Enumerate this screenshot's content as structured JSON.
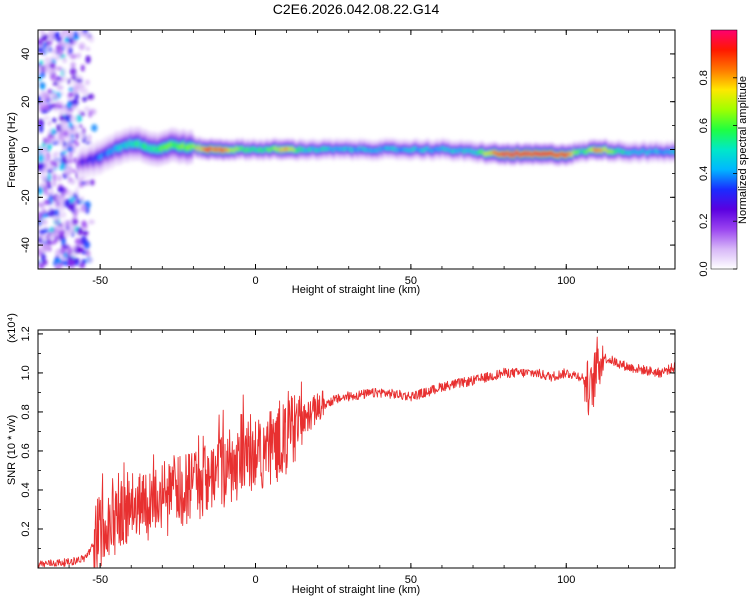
{
  "chart_data": [
    {
      "type": "heatmap",
      "title": "C2E6.2026.042.08.22.G14",
      "xlabel": "Height of straight line (km)",
      "ylabel": "Frequency (Hz)",
      "xlim": [
        -70,
        135
      ],
      "ylim": [
        -50,
        50
      ],
      "xticks": [
        -50,
        0,
        50,
        100
      ],
      "yticks": [
        -40,
        -20,
        0,
        20,
        40
      ],
      "colorbar": {
        "label": "Normalized spectral amplitude",
        "range": [
          0,
          1
        ],
        "ticks": [
          0.0,
          0.2,
          0.4,
          0.6,
          0.8
        ],
        "colors": [
          "#ffffff",
          "#d8b8f8",
          "#9a44f0",
          "#5a00e0",
          "#1a2cff",
          "#00b8ff",
          "#00e8c8",
          "#20ff40",
          "#a0ff00",
          "#ffe800",
          "#ff7800",
          "#ff1800",
          "#ff0070"
        ]
      },
      "ridge": {
        "description": "frequency (Hz) of dominant spectral line vs height (km)",
        "x": [
          -70,
          -57,
          -55,
          -52,
          -50,
          -47,
          -44,
          -41,
          -38,
          -35,
          -32,
          -29,
          -26,
          -23,
          -20,
          -15,
          -10,
          -5,
          0,
          5,
          10,
          15,
          20,
          30,
          40,
          50,
          60,
          70,
          80,
          90,
          100,
          105,
          110,
          120,
          135
        ],
        "y": [
          0,
          -6,
          -5,
          -4,
          -3,
          -1,
          1,
          2,
          3,
          1,
          0,
          1,
          2,
          1,
          1,
          0,
          0,
          0,
          0,
          0,
          0,
          0,
          0,
          0,
          0,
          0,
          0,
          -1,
          -2,
          -2,
          -2,
          -1,
          0,
          -1,
          -1
        ],
        "amplitude": [
          0.0,
          0.2,
          0.25,
          0.3,
          0.35,
          0.4,
          0.45,
          0.5,
          0.55,
          0.55,
          0.55,
          0.6,
          0.6,
          0.65,
          0.65,
          0.9,
          0.85,
          0.6,
          0.55,
          0.6,
          0.85,
          0.5,
          0.5,
          0.45,
          0.45,
          0.45,
          0.45,
          0.5,
          0.95,
          0.95,
          0.9,
          0.5,
          0.85,
          0.45,
          0.45
        ]
      }
    },
    {
      "type": "line",
      "xlabel": "Height of straight line (km)",
      "ylabel": "SNR (10 * v/v)",
      "ylabel_scale": "(x10⁴)",
      "xlim": [
        -70,
        135
      ],
      "ylim": [
        0.0,
        1.22
      ],
      "xticks": [
        -50,
        0,
        50,
        100
      ],
      "yticks": [
        0.2,
        0.4,
        0.6,
        0.8,
        1.0,
        1.2
      ],
      "ytick_labels": [
        "0.2",
        "0.4",
        "0.6",
        "0.8",
        "1.0",
        "1.2"
      ],
      "series": [
        {
          "name": "SNR",
          "color": "#e83030",
          "x": [
            -70,
            -60,
            -55,
            -52,
            -50,
            -48,
            -45,
            -40,
            -35,
            -30,
            -25,
            -20,
            -15,
            -10,
            -5,
            0,
            5,
            10,
            15,
            20,
            25,
            30,
            40,
            50,
            55,
            60,
            70,
            80,
            90,
            95,
            100,
            105,
            108,
            110,
            112,
            120,
            130,
            135
          ],
          "y": [
            0.02,
            0.03,
            0.05,
            0.12,
            0.2,
            0.25,
            0.28,
            0.3,
            0.32,
            0.35,
            0.4,
            0.45,
            0.48,
            0.5,
            0.55,
            0.58,
            0.62,
            0.68,
            0.75,
            0.82,
            0.86,
            0.88,
            0.9,
            0.88,
            0.9,
            0.93,
            0.96,
            1.0,
            1.0,
            0.98,
            1.0,
            0.98,
            0.9,
            1.05,
            1.08,
            1.03,
            1.0,
            1.03
          ]
        }
      ]
    }
  ]
}
